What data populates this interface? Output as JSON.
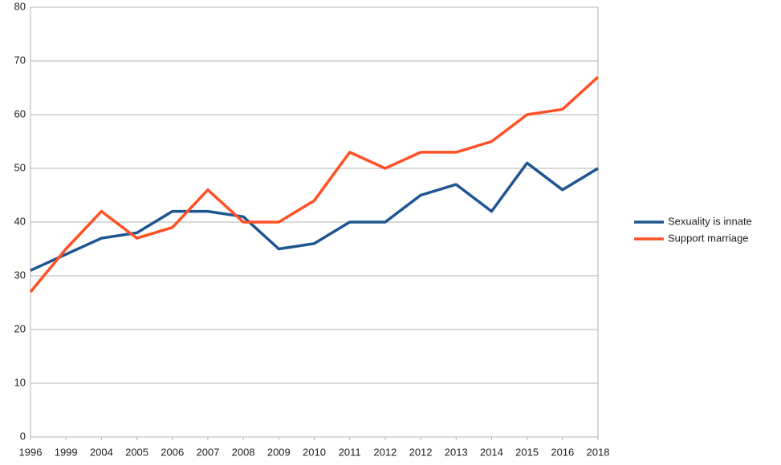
{
  "chart_data": {
    "type": "line",
    "categories": [
      "1996",
      "1999",
      "2004",
      "2005",
      "2006",
      "2007",
      "2008",
      "2009",
      "2010",
      "2011",
      "2012",
      "2012",
      "2013",
      "2014",
      "2015",
      "2016",
      "2018"
    ],
    "series": [
      {
        "name": "Sexuality is innate",
        "color": "#1f5591",
        "values": [
          31,
          34,
          37,
          38,
          42,
          42,
          41,
          35,
          36,
          40,
          40,
          45,
          47,
          42,
          51,
          46,
          50
        ]
      },
      {
        "name": "Support marriage",
        "color": "#ff5126",
        "values": [
          27,
          35,
          42,
          37,
          39,
          46,
          40,
          40,
          44,
          53,
          50,
          53,
          53,
          55,
          60,
          61,
          67
        ]
      }
    ],
    "ylim": [
      0,
      80
    ],
    "yticks": [
      0,
      10,
      20,
      30,
      40,
      50,
      60,
      70,
      80
    ],
    "grid": true,
    "legend": "right"
  }
}
